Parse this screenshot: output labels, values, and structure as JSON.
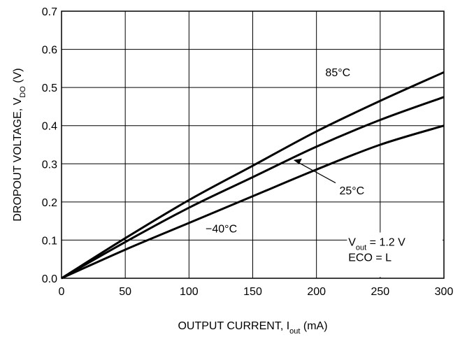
{
  "chart_data": {
    "type": "line",
    "title": "",
    "xlabel": {
      "main": "OUTPUT CURRENT, I",
      "sub": "out",
      "unit": " (mA)"
    },
    "ylabel": {
      "main": "DROPOUT VOLTAGE, V",
      "sub": "DO",
      "unit": " (V)"
    },
    "xlim": [
      0,
      300
    ],
    "ylim": [
      0,
      0.7
    ],
    "x_ticks": [
      "0",
      "50",
      "100",
      "150",
      "200",
      "250",
      "300"
    ],
    "y_ticks": [
      "0.0",
      "0.1",
      "0.2",
      "0.3",
      "0.4",
      "0.5",
      "0.6",
      "0.7"
    ],
    "grid": true,
    "series": [
      {
        "name": "85°C",
        "x": [
          0,
          50,
          100,
          150,
          200,
          250,
          300
        ],
        "values": [
          0,
          0.105,
          0.205,
          0.295,
          0.385,
          0.465,
          0.54
        ]
      },
      {
        "name": "25°C",
        "x": [
          0,
          50,
          100,
          150,
          200,
          250,
          300
        ],
        "values": [
          0,
          0.095,
          0.185,
          0.265,
          0.345,
          0.415,
          0.475
        ]
      },
      {
        "name": "−40°C",
        "x": [
          0,
          50,
          100,
          150,
          200,
          250,
          300
        ],
        "values": [
          0,
          0.075,
          0.145,
          0.215,
          0.285,
          0.35,
          0.4
        ]
      }
    ],
    "conditions": [
      {
        "main": "V",
        "sub": "out",
        "rest": " = 1.2 V"
      },
      {
        "main": "ECO = L",
        "sub": "",
        "rest": ""
      }
    ]
  }
}
